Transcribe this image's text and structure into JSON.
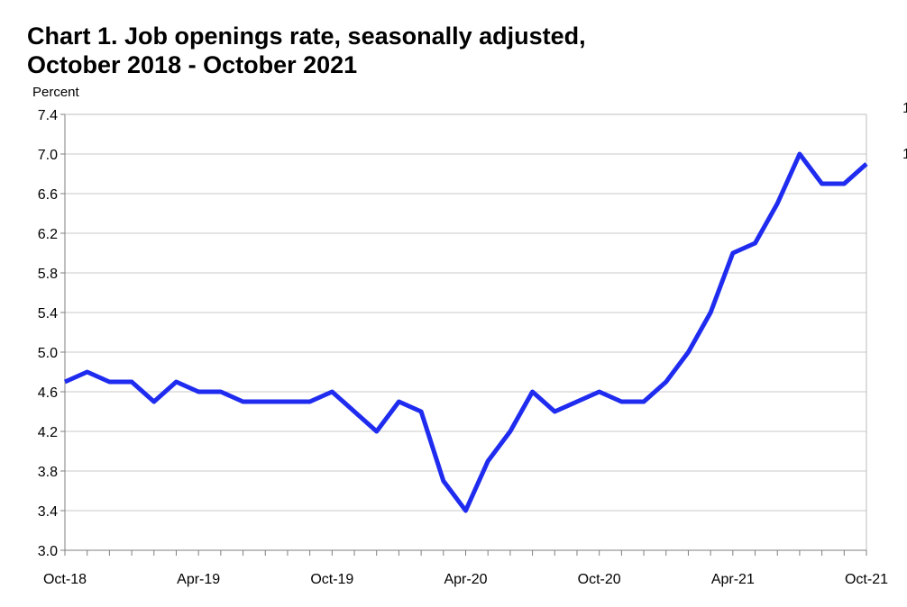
{
  "chart_data": {
    "type": "line",
    "title_line1": "Chart 1. Job openings rate, seasonally adjusted,",
    "title_line2": "October 2018 - October 2021",
    "ylabel": "Percent",
    "xlabel": "",
    "ylim": [
      3.0,
      7.4
    ],
    "yticks": [
      "3.0",
      "3.4",
      "3.8",
      "4.2",
      "4.6",
      "5.0",
      "5.4",
      "5.8",
      "6.2",
      "6.6",
      "7.0",
      "7.4"
    ],
    "xtick_labels": [
      "Oct-18",
      "Apr-19",
      "Oct-19",
      "Apr-20",
      "Oct-20",
      "Apr-21",
      "Oct-21"
    ],
    "grid": true,
    "legend": "none",
    "x": [
      "Oct-18",
      "Nov-18",
      "Dec-18",
      "Jan-19",
      "Feb-19",
      "Mar-19",
      "Apr-19",
      "May-19",
      "Jun-19",
      "Jul-19",
      "Aug-19",
      "Sep-19",
      "Oct-19",
      "Nov-19",
      "Dec-19",
      "Jan-20",
      "Feb-20",
      "Mar-20",
      "Apr-20",
      "May-20",
      "Jun-20",
      "Jul-20",
      "Aug-20",
      "Sep-20",
      "Oct-20",
      "Nov-20",
      "Dec-20",
      "Jan-21",
      "Feb-21",
      "Mar-21",
      "Apr-21",
      "May-21",
      "Jun-21",
      "Jul-21",
      "Aug-21",
      "Sep-21",
      "Oct-21"
    ],
    "series": [
      {
        "values": [
          4.7,
          4.8,
          4.7,
          4.7,
          4.5,
          4.7,
          4.6,
          4.6,
          4.5,
          4.5,
          4.5,
          4.5,
          4.6,
          4.4,
          4.2,
          4.5,
          4.4,
          3.7,
          3.4,
          3.9,
          4.2,
          4.6,
          4.4,
          4.5,
          4.6,
          4.5,
          4.5,
          4.7,
          5.0,
          5.4,
          6.0,
          6.1,
          6.5,
          7.0,
          6.7,
          6.7,
          6.9
        ],
        "color": "#1f2cf0"
      }
    ],
    "right_edge_marks": [
      "1",
      "1"
    ]
  }
}
